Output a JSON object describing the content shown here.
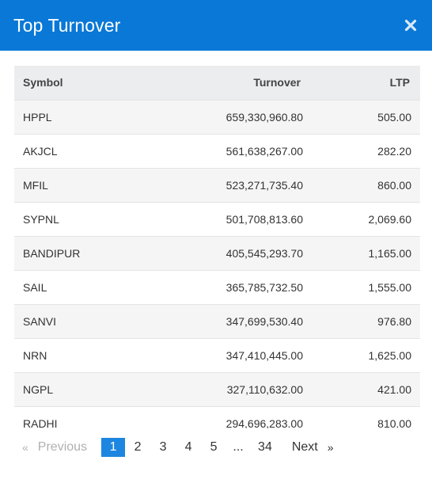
{
  "header": {
    "title": "Top Turnover",
    "close_icon": "close-icon"
  },
  "table": {
    "columns": [
      "Symbol",
      "Turnover",
      "LTP"
    ],
    "rows": [
      {
        "symbol": "HPPL",
        "turnover": "659,330,960.80",
        "ltp": "505.00"
      },
      {
        "symbol": "AKJCL",
        "turnover": "561,638,267.00",
        "ltp": "282.20"
      },
      {
        "symbol": "MFIL",
        "turnover": "523,271,735.40",
        "ltp": "860.00"
      },
      {
        "symbol": "SYPNL",
        "turnover": "501,708,813.60",
        "ltp": "2,069.60"
      },
      {
        "symbol": "BANDIPUR",
        "turnover": "405,545,293.70",
        "ltp": "1,165.00"
      },
      {
        "symbol": "SAIL",
        "turnover": "365,785,732.50",
        "ltp": "1,555.00"
      },
      {
        "symbol": "SANVI",
        "turnover": "347,699,530.40",
        "ltp": "976.80"
      },
      {
        "symbol": "NRN",
        "turnover": "347,410,445.00",
        "ltp": "1,625.00"
      },
      {
        "symbol": "NGPL",
        "turnover": "327,110,632.00",
        "ltp": "421.00"
      },
      {
        "symbol": "RADHI",
        "turnover": "294,696,283.00",
        "ltp": "810.00"
      }
    ]
  },
  "pagination": {
    "prev_arrow": "«",
    "prev_label": "Previous",
    "pages": [
      "1",
      "2",
      "3",
      "4",
      "5"
    ],
    "active_page": "1",
    "ellipsis": "...",
    "last_page": "34",
    "next_label": "Next",
    "next_arrow": "»"
  },
  "colors": {
    "header_bg": "#0a78d7",
    "active_page_bg": "#1c86e0",
    "table_header_bg": "#ecedef"
  }
}
